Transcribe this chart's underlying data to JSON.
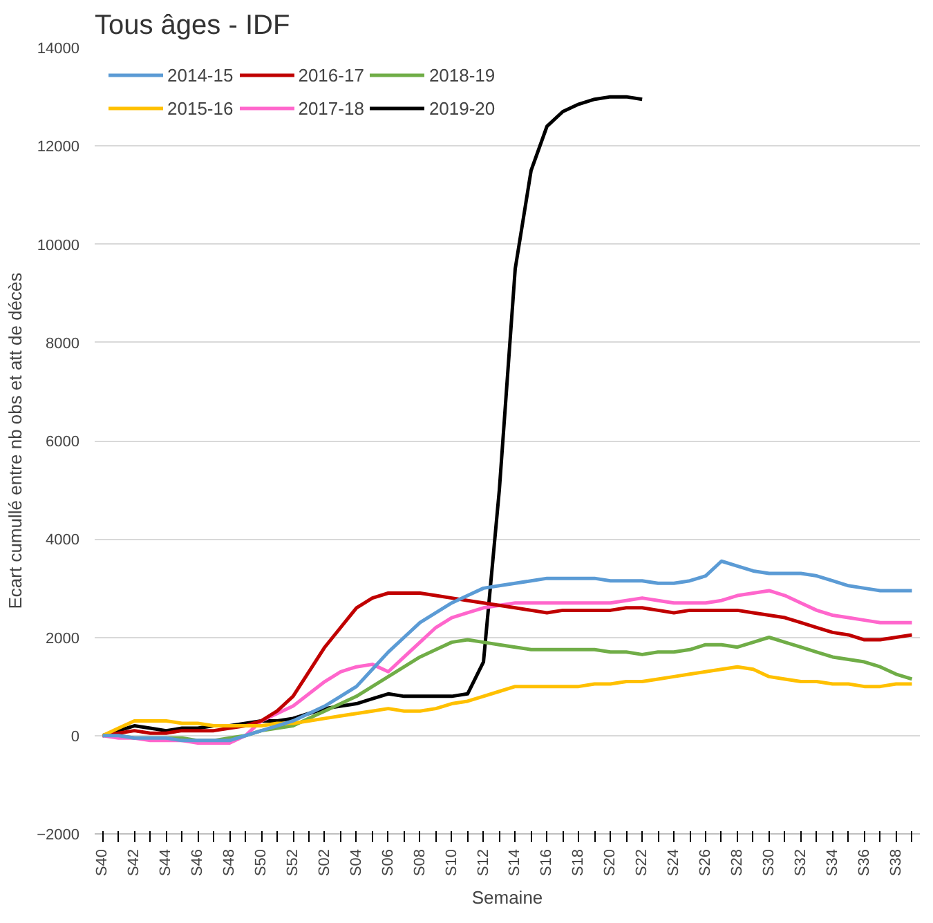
{
  "chart_data": {
    "type": "line",
    "title": "Tous âges - IDF",
    "xlabel": "Semaine",
    "ylabel": "Ecart cumullé entre nb obs et att de décès",
    "categories": [
      "S40",
      null,
      "S42",
      null,
      "S44",
      null,
      "S46",
      null,
      "S48",
      null,
      "S50",
      null,
      "S52",
      null,
      "S02",
      null,
      "S04",
      null,
      "S06",
      null,
      "S08",
      null,
      "S10",
      null,
      "S12",
      null,
      "S14",
      null,
      "S16",
      null,
      "S18",
      null,
      "S20",
      null,
      "S22",
      null,
      "S24",
      null,
      "S26",
      null,
      "S28",
      null,
      "S30",
      null,
      "S32",
      null,
      "S34",
      null,
      "S36",
      null,
      "S38",
      null
    ],
    "series": [
      {
        "name": "2014-15",
        "color": "#5b9bd5",
        "values": [
          0,
          0,
          -50,
          -50,
          -50,
          -100,
          -100,
          -100,
          -100,
          0,
          100,
          200,
          300,
          450,
          600,
          800,
          1000,
          1350,
          1700,
          2000,
          2300,
          2500,
          2700,
          2850,
          3000,
          3050,
          3100,
          3150,
          3200,
          3200,
          3200,
          3200,
          3150,
          3150,
          3150,
          3100,
          3100,
          3150,
          3250,
          3550,
          3450,
          3350,
          3300,
          3300,
          3300,
          3250,
          3150,
          3050,
          3000,
          2950,
          2950,
          2950
        ]
      },
      {
        "name": "2015-16",
        "color": "#ffc000",
        "values": [
          0,
          150,
          300,
          300,
          300,
          250,
          250,
          200,
          200,
          200,
          200,
          250,
          250,
          300,
          350,
          400,
          450,
          500,
          550,
          500,
          500,
          550,
          650,
          700,
          800,
          900,
          1000,
          1000,
          1000,
          1000,
          1000,
          1050,
          1050,
          1100,
          1100,
          1150,
          1200,
          1250,
          1300,
          1350,
          1400,
          1350,
          1200,
          1150,
          1100,
          1100,
          1050,
          1050,
          1000,
          1000,
          1050,
          1050
        ]
      },
      {
        "name": "2016-17",
        "color": "#c00000",
        "values": [
          0,
          50,
          100,
          50,
          50,
          100,
          100,
          100,
          150,
          200,
          300,
          500,
          800,
          1300,
          1800,
          2200,
          2600,
          2800,
          2900,
          2900,
          2900,
          2850,
          2800,
          2750,
          2700,
          2650,
          2600,
          2550,
          2500,
          2550,
          2550,
          2550,
          2550,
          2600,
          2600,
          2550,
          2500,
          2550,
          2550,
          2550,
          2550,
          2500,
          2450,
          2400,
          2300,
          2200,
          2100,
          2050,
          1950,
          1950,
          2000,
          2050
        ]
      },
      {
        "name": "2017-18",
        "color": "#ff66cc",
        "values": [
          0,
          -50,
          -50,
          -100,
          -100,
          -100,
          -150,
          -150,
          -150,
          0,
          300,
          450,
          600,
          850,
          1100,
          1300,
          1400,
          1450,
          1300,
          1600,
          1900,
          2200,
          2400,
          2500,
          2600,
          2650,
          2700,
          2700,
          2700,
          2700,
          2700,
          2700,
          2700,
          2750,
          2800,
          2750,
          2700,
          2700,
          2700,
          2750,
          2850,
          2900,
          2950,
          2850,
          2700,
          2550,
          2450,
          2400,
          2350,
          2300,
          2300,
          2300
        ]
      },
      {
        "name": "2018-19",
        "color": "#70ad47",
        "values": [
          0,
          0,
          -50,
          -50,
          -50,
          -50,
          -100,
          -100,
          -50,
          0,
          100,
          150,
          200,
          350,
          500,
          650,
          800,
          1000,
          1200,
          1400,
          1600,
          1750,
          1900,
          1950,
          1900,
          1850,
          1800,
          1750,
          1750,
          1750,
          1750,
          1750,
          1700,
          1700,
          1650,
          1700,
          1700,
          1750,
          1850,
          1850,
          1800,
          1900,
          2000,
          1900,
          1800,
          1700,
          1600,
          1550,
          1500,
          1400,
          1250,
          1150
        ]
      },
      {
        "name": "2019-20",
        "color": "#000000",
        "values": [
          0,
          100,
          200,
          150,
          100,
          150,
          150,
          200,
          200,
          250,
          300,
          300,
          350,
          450,
          550,
          600,
          650,
          750,
          850,
          800,
          800,
          800,
          800,
          850,
          1500,
          5000,
          9500,
          11500,
          12400,
          12700,
          12850,
          12950,
          13000,
          13000,
          12950,
          null,
          null,
          null,
          null,
          null,
          null,
          null,
          null,
          null,
          null,
          null,
          null,
          null,
          null,
          null,
          null,
          null
        ]
      }
    ],
    "ylim": [
      -2000,
      14000
    ],
    "yticks": [
      -2000,
      0,
      2000,
      4000,
      6000,
      8000,
      10000,
      12000,
      14000
    ],
    "grid": "y",
    "legend": "top left",
    "marker": "none",
    "line_style": "solid"
  }
}
